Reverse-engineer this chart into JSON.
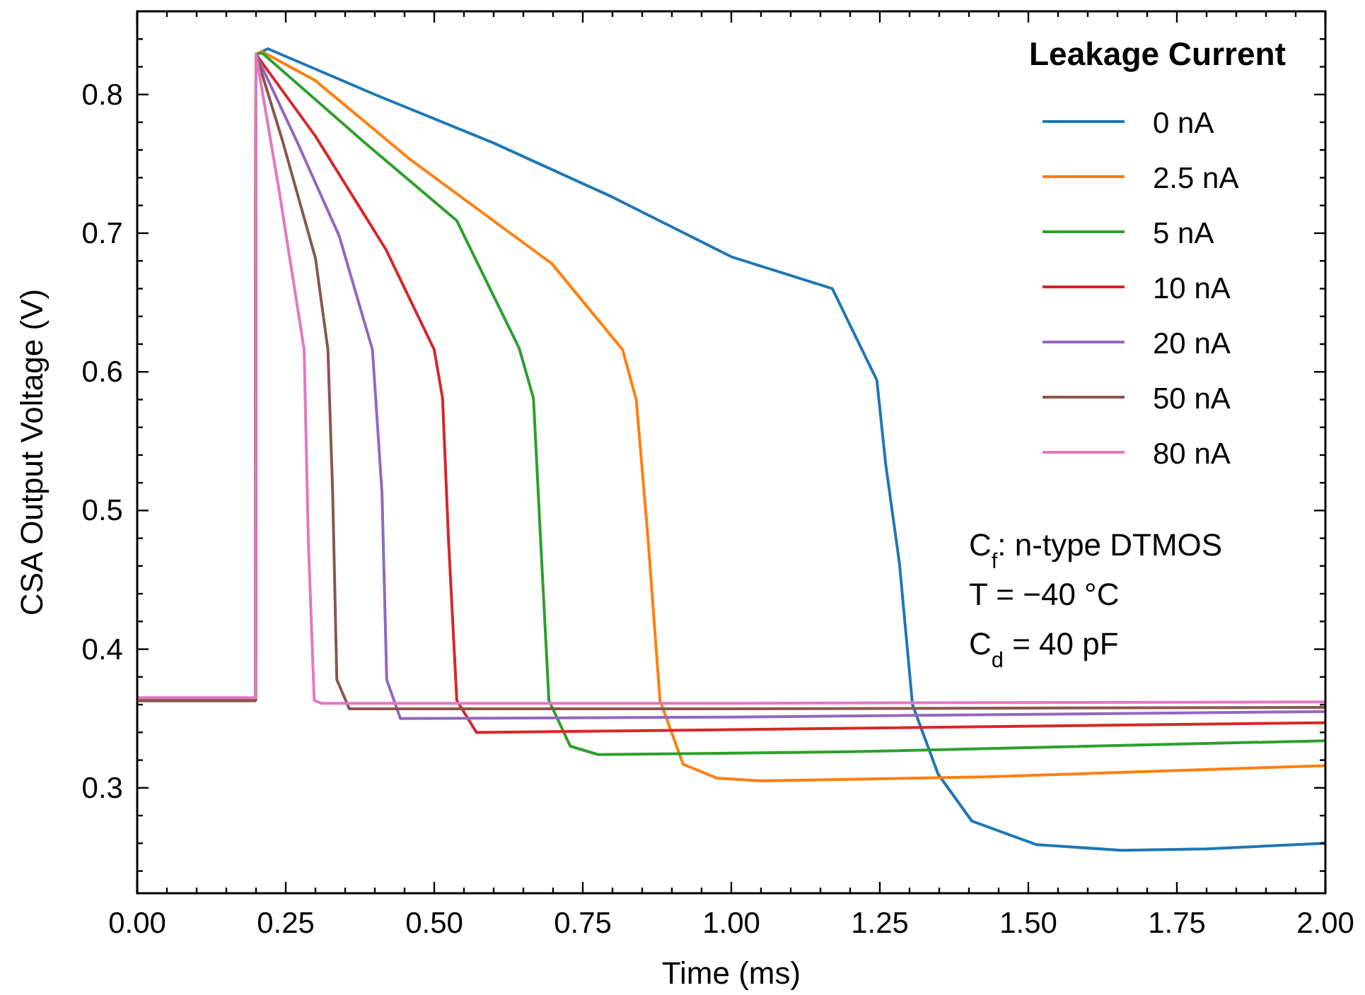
{
  "chart_data": {
    "type": "line",
    "xlabel": "Time (ms)",
    "ylabel": "CSA Output Voltage (V)",
    "legend_title": "Leakage Current",
    "legend": "top right",
    "xlim": [
      0,
      2
    ],
    "ylim": [
      0.224,
      0.86
    ],
    "xticks": [
      {
        "value": 0,
        "label": "0.00"
      },
      {
        "value": 0.05,
        "label": null
      },
      {
        "value": 0.1,
        "label": null
      },
      {
        "value": 0.15,
        "label": null
      },
      {
        "value": 0.2,
        "label": null
      },
      {
        "value": 0.25,
        "label": "0.25"
      },
      {
        "value": 0.3,
        "label": null
      },
      {
        "value": 0.35,
        "label": null
      },
      {
        "value": 0.4,
        "label": null
      },
      {
        "value": 0.45,
        "label": null
      },
      {
        "value": 0.5,
        "label": "0.50"
      },
      {
        "value": 0.55,
        "label": null
      },
      {
        "value": 0.6,
        "label": null
      },
      {
        "value": 0.65,
        "label": null
      },
      {
        "value": 0.7,
        "label": null
      },
      {
        "value": 0.75,
        "label": "0.75"
      },
      {
        "value": 0.8,
        "label": null
      },
      {
        "value": 0.85,
        "label": null
      },
      {
        "value": 0.9,
        "label": null
      },
      {
        "value": 0.95,
        "label": null
      },
      {
        "value": 1,
        "label": "1.00"
      },
      {
        "value": 1.05,
        "label": null
      },
      {
        "value": 1.1,
        "label": null
      },
      {
        "value": 1.15,
        "label": null
      },
      {
        "value": 1.2,
        "label": null
      },
      {
        "value": 1.25,
        "label": "1.25"
      },
      {
        "value": 1.3,
        "label": null
      },
      {
        "value": 1.35,
        "label": null
      },
      {
        "value": 1.4,
        "label": null
      },
      {
        "value": 1.45,
        "label": null
      },
      {
        "value": 1.5,
        "label": "1.50"
      },
      {
        "value": 1.55,
        "label": null
      },
      {
        "value": 1.6,
        "label": null
      },
      {
        "value": 1.65,
        "label": null
      },
      {
        "value": 1.7,
        "label": null
      },
      {
        "value": 1.75,
        "label": "1.75"
      },
      {
        "value": 1.8,
        "label": null
      },
      {
        "value": 1.85,
        "label": null
      },
      {
        "value": 1.9,
        "label": null
      },
      {
        "value": 1.95,
        "label": null
      },
      {
        "value": 2,
        "label": "2.00"
      }
    ],
    "yticks": [
      {
        "value": 0.24,
        "label": null
      },
      {
        "value": 0.26,
        "label": null
      },
      {
        "value": 0.28,
        "label": null
      },
      0.3,
      {
        "value": 0.32,
        "label": null
      },
      {
        "value": 0.34,
        "label": null
      },
      {
        "value": 0.36,
        "label": null
      },
      {
        "value": 0.38,
        "label": null
      },
      0.4,
      {
        "value": 0.42,
        "label": null
      },
      {
        "value": 0.44,
        "label": null
      },
      {
        "value": 0.46,
        "label": null
      },
      {
        "value": 0.48,
        "label": null
      },
      0.5,
      {
        "value": 0.52,
        "label": null
      },
      {
        "value": 0.54,
        "label": null
      },
      {
        "value": 0.56,
        "label": null
      },
      {
        "value": 0.58,
        "label": null
      },
      0.6,
      {
        "value": 0.62,
        "label": null
      },
      {
        "value": 0.64,
        "label": null
      },
      {
        "value": 0.66,
        "label": null
      },
      {
        "value": 0.68,
        "label": null
      },
      0.7,
      {
        "value": 0.72,
        "label": null
      },
      {
        "value": 0.74,
        "label": null
      },
      {
        "value": 0.76,
        "label": null
      },
      {
        "value": 0.78,
        "label": null
      },
      0.8,
      {
        "value": 0.82,
        "label": null
      },
      {
        "value": 0.84,
        "label": null
      }
    ],
    "annotations": [
      "C$_{f}$: n-type DTMOS",
      "T = −40 °C",
      "C$_{d}$ = 40 pF"
    ],
    "series": [
      {
        "name": "0 nA",
        "color": "#1f77b4",
        "x": [
          0,
          0.199,
          0.2,
          0.22,
          0.4,
          0.6,
          0.8,
          1.0,
          1.17,
          1.245,
          1.26,
          1.283,
          1.305,
          1.348,
          1.405,
          1.514,
          1.657,
          1.8,
          2.0
        ],
        "values": [
          0.363,
          0.363,
          0.829,
          0.833,
          0.8,
          0.765,
          0.726,
          0.683,
          0.66,
          0.594,
          0.533,
          0.462,
          0.36,
          0.31,
          0.276,
          0.259,
          0.255,
          0.256,
          0.26
        ]
      },
      {
        "name": "2.5 nA",
        "color": "#ff7f0e",
        "x": [
          0,
          0.199,
          0.2,
          0.21,
          0.3,
          0.46,
          0.698,
          0.817,
          0.84,
          0.86,
          0.88,
          0.919,
          0.976,
          1.05,
          1.43,
          2.0
        ],
        "values": [
          0.363,
          0.363,
          0.829,
          0.831,
          0.81,
          0.753,
          0.678,
          0.616,
          0.58,
          0.479,
          0.363,
          0.317,
          0.307,
          0.305,
          0.308,
          0.316
        ]
      },
      {
        "name": "5 nA",
        "color": "#2ca02c",
        "x": [
          0,
          0.199,
          0.2,
          0.21,
          0.381,
          0.538,
          0.643,
          0.667,
          0.679,
          0.693,
          0.729,
          0.776,
          1.2,
          2.0
        ],
        "values": [
          0.363,
          0.363,
          0.829,
          0.83,
          0.766,
          0.709,
          0.617,
          0.581,
          0.479,
          0.363,
          0.33,
          0.324,
          0.326,
          0.334
        ]
      },
      {
        "name": "10 nA",
        "color": "#d62728",
        "x": [
          0,
          0.199,
          0.2,
          0.3,
          0.419,
          0.5,
          0.514,
          0.524,
          0.538,
          0.571,
          1.0,
          2.0
        ],
        "values": [
          0.363,
          0.363,
          0.829,
          0.77,
          0.688,
          0.616,
          0.581,
          0.479,
          0.363,
          0.34,
          0.342,
          0.347
        ]
      },
      {
        "name": "20 nA",
        "color": "#9467bd",
        "x": [
          0,
          0.199,
          0.2,
          0.269,
          0.34,
          0.396,
          0.412,
          0.42,
          0.443,
          1.0,
          2.0
        ],
        "values": [
          0.363,
          0.363,
          0.829,
          0.766,
          0.698,
          0.616,
          0.513,
          0.378,
          0.35,
          0.351,
          0.355
        ]
      },
      {
        "name": "50 nA",
        "color": "#8c564b",
        "x": [
          0,
          0.199,
          0.2,
          0.245,
          0.3,
          0.321,
          0.329,
          0.336,
          0.357,
          1.0,
          2.0
        ],
        "values": [
          0.363,
          0.363,
          0.829,
          0.766,
          0.682,
          0.616,
          0.513,
          0.378,
          0.357,
          0.357,
          0.358
        ]
      },
      {
        "name": "80 nA",
        "color": "#e377c2",
        "x": [
          0,
          0.199,
          0.2,
          0.238,
          0.281,
          0.288,
          0.298,
          0.31,
          1.0,
          2.0
        ],
        "values": [
          0.365,
          0.365,
          0.829,
          0.733,
          0.616,
          0.479,
          0.363,
          0.361,
          0.361,
          0.362
        ]
      }
    ]
  }
}
